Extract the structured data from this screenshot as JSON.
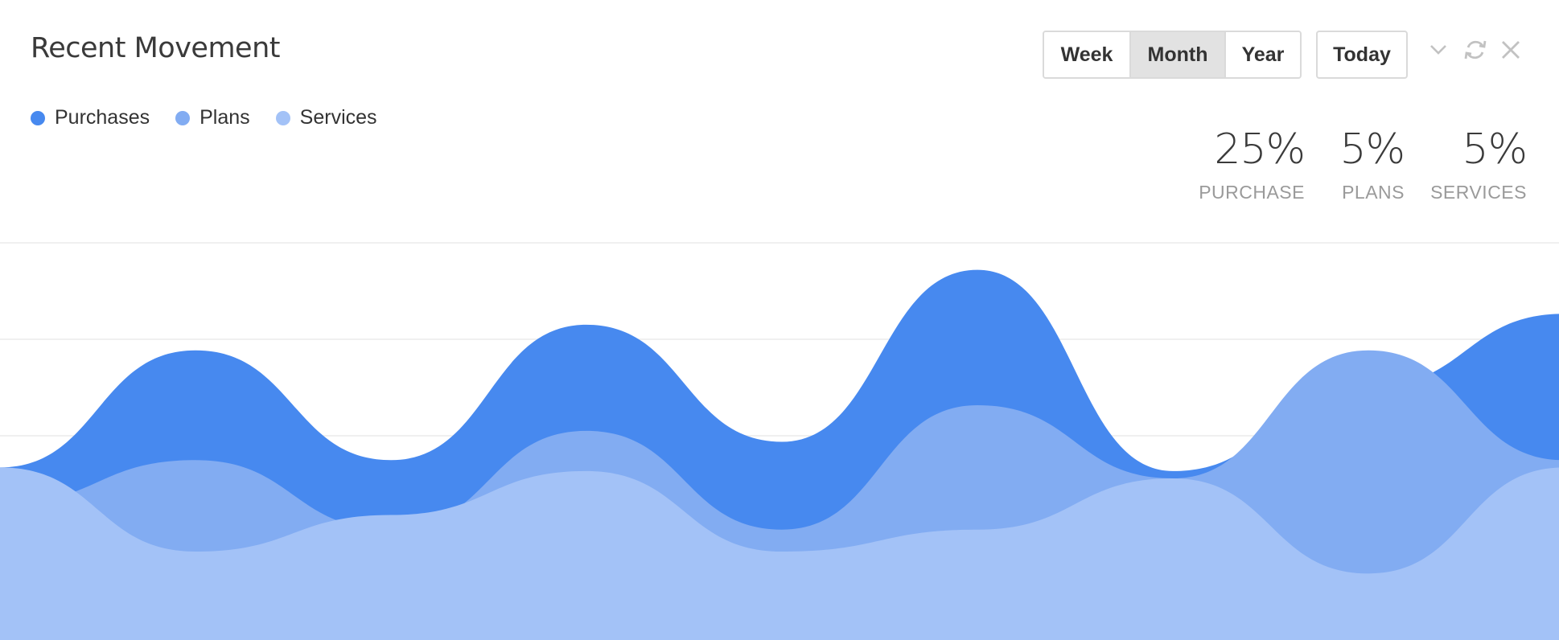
{
  "widget": {
    "title": "Recent Movement",
    "range_buttons": [
      "Week",
      "Month",
      "Year"
    ],
    "active_range": "Month",
    "today_label": "Today",
    "tools": [
      {
        "name": "chevron-down-icon"
      },
      {
        "name": "refresh-icon"
      },
      {
        "name": "close-icon"
      }
    ]
  },
  "stats": [
    {
      "value": "25%",
      "label": "PURCHASE"
    },
    {
      "value": "5%",
      "label": "PLANS"
    },
    {
      "value": "5%",
      "label": "SERVICES"
    }
  ],
  "chart_data": {
    "type": "area",
    "stacked": false,
    "smooth": true,
    "x": [
      0,
      1,
      2,
      3,
      4,
      5,
      6,
      7,
      8
    ],
    "ylim": [
      0,
      100
    ],
    "grid": true,
    "axes_visible": false,
    "legend_position": "top-left",
    "series": [
      {
        "name": "Purchases",
        "color": "#4789ef",
        "values": [
          43,
          75,
          45,
          82,
          50,
          97,
          42,
          65,
          85
        ]
      },
      {
        "name": "Plans",
        "color": "#82acf2",
        "values": [
          33,
          45,
          26,
          53,
          26,
          60,
          40,
          75,
          45
        ]
      },
      {
        "name": "Services",
        "color": "#a3c2f7",
        "values": [
          43,
          20,
          30,
          42,
          20,
          26,
          40,
          14,
          43
        ]
      }
    ]
  }
}
